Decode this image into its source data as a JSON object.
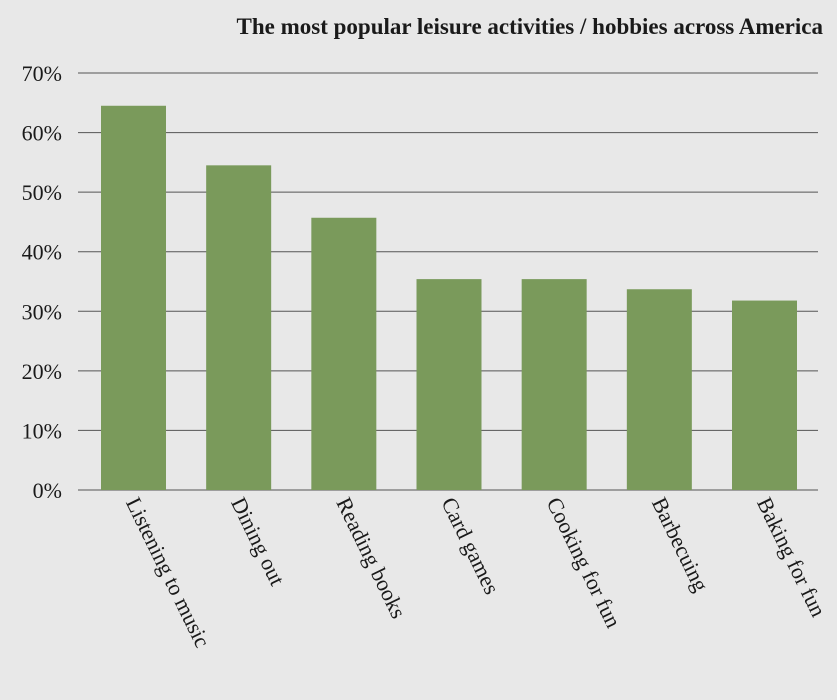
{
  "chart_data": {
    "type": "bar",
    "title": "The most popular leisure activities / hobbies across America",
    "xlabel": "",
    "ylabel": "",
    "categories": [
      "Listening to music",
      "Dining out",
      "Reading books",
      "Card games",
      "Cooking for fun",
      "Barbecuing",
      "Baking for fun"
    ],
    "values": [
      64.5,
      54.5,
      45.7,
      35.4,
      35.4,
      33.7,
      31.8
    ],
    "ylim": [
      0,
      70
    ],
    "yticks": [
      0,
      10,
      20,
      30,
      40,
      50,
      60,
      70
    ],
    "ytick_labels": [
      "0%",
      "10%",
      "20%",
      "30%",
      "40%",
      "50%",
      "60%",
      "70%"
    ],
    "grid": true,
    "legend": "none",
    "bar_color": "#7a9a5b",
    "background_color": "#e8e8e8"
  }
}
